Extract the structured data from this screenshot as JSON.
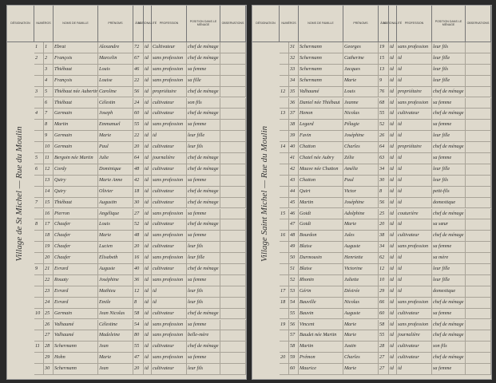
{
  "pages": [
    {
      "headers": [
        "DÉSIGNATION",
        "NUMÉROS",
        "NOMS DE FAMILLE",
        "PRÉNOMS",
        "ÂGE",
        "NATIONALITÉ",
        "PROFESSION",
        "POSITION DANS LE MÉNAGE",
        "OBSERVATIONS"
      ],
      "margin_note": "Village de St Michel — Rue du Moulin",
      "rows": [
        [
          "1",
          "1",
          "Ebrat",
          "Alexandre",
          "72",
          "id",
          "Cultivateur",
          "chef de ménage"
        ],
        [
          "2",
          "2",
          "François",
          "Marcelin",
          "67",
          "id",
          "sans profession",
          "chef de ménage"
        ],
        [
          null,
          "3",
          "Thiébaut",
          "Louis",
          "46",
          "id",
          "sans profession",
          "sa femme"
        ],
        [
          null,
          "4",
          "François",
          "Louise",
          "22",
          "id",
          "sans profession",
          "sa fille"
        ],
        [
          "3",
          "5",
          "Thiébaut née Aubertin",
          "Caroline",
          "56",
          "id",
          "propriétaire",
          "chef de ménage"
        ],
        [
          null,
          "6",
          "Thiébaut",
          "Célestin",
          "24",
          "id",
          "cultivateur",
          "son fils"
        ],
        [
          "4",
          "7",
          "Germain",
          "Joseph",
          "60",
          "id",
          "cultivateur",
          "chef de ménage"
        ],
        [
          null,
          "8",
          "Martin",
          "Emmanuel",
          "55",
          "id",
          "sans profession",
          "sa femme"
        ],
        [
          null,
          "9",
          "Germain",
          "Marie",
          "22",
          "id",
          "id",
          "leur fille"
        ],
        [
          null,
          "10",
          "Germain",
          "Paul",
          "20",
          "id",
          "cultivateur",
          "leur fils"
        ],
        [
          "5",
          "11",
          "Bergoin née Martin",
          "Julie",
          "64",
          "id",
          "journalière",
          "chef de ménage"
        ],
        [
          "6",
          "12",
          "Cordy",
          "Dominique",
          "48",
          "id",
          "cultivateur",
          "chef de ménage"
        ],
        [
          null,
          "13",
          "Quiry",
          "Marie Anne",
          "42",
          "id",
          "sans profession",
          "sa femme"
        ],
        [
          null,
          "14",
          "Quiry",
          "Olivier",
          "18",
          "id",
          "cultivateur",
          "chef de ménage"
        ],
        [
          "7",
          "15",
          "Thiébaut",
          "Augustin",
          "30",
          "id",
          "cultivateur",
          "chef de ménage"
        ],
        [
          null,
          "16",
          "Pierron",
          "Angélique",
          "27",
          "id",
          "sans profession",
          "sa femme"
        ],
        [
          "8",
          "17",
          "Chaufer",
          "Louis",
          "52",
          "id",
          "cultivateur",
          "chef de ménage"
        ],
        [
          null,
          "18",
          "Chaufer",
          "Marie",
          "48",
          "id",
          "sans profession",
          "sa femme"
        ],
        [
          null,
          "19",
          "Chaufer",
          "Lucien",
          "20",
          "id",
          "cultivateur",
          "leur fils"
        ],
        [
          null,
          "20",
          "Chaufer",
          "Elisabeth",
          "16",
          "id",
          "sans profession",
          "leur fille"
        ],
        [
          "9",
          "21",
          "Evrard",
          "Auguste",
          "40",
          "id",
          "cultivateur",
          "chef de ménage"
        ],
        [
          null,
          "22",
          "Rouaty",
          "Joséphine",
          "36",
          "id",
          "sans profession",
          "sa femme"
        ],
        [
          null,
          "23",
          "Evrard",
          "Mathieu",
          "12",
          "id",
          "id",
          "leur fils"
        ],
        [
          null,
          "24",
          "Evrard",
          "Emile",
          "8",
          "id",
          "id",
          "leur fils"
        ],
        [
          "10",
          "25",
          "Germain",
          "Jean Nicolas",
          "58",
          "id",
          "cultivateur",
          "chef de ménage"
        ],
        [
          null,
          "26",
          "Valhaumé",
          "Célestine",
          "54",
          "id",
          "sans profession",
          "sa femme"
        ],
        [
          null,
          "27",
          "Valhaumé",
          "Madeleine",
          "80",
          "id",
          "sans profession",
          "belle-mère"
        ],
        [
          "11",
          "28",
          "Schermann",
          "Jean",
          "55",
          "id",
          "cultivateur",
          "chef de ménage"
        ],
        [
          null,
          "29",
          "Hohn",
          "Marie",
          "47",
          "id",
          "sans profession",
          "sa femme"
        ],
        [
          null,
          "30",
          "Schermann",
          "Jean",
          "20",
          "id",
          "cultivateur",
          "leur fils"
        ]
      ]
    },
    {
      "headers": [
        "DÉSIGNATION",
        "NUMÉROS",
        "NOMS DE FAMILLE",
        "PRÉNOMS",
        "ÂGE",
        "NATIONALITÉ",
        "PROFESSION",
        "POSITION DANS LE MÉNAGE",
        "OBSERVATIONS"
      ],
      "margin_note": "Village Saint Michel — Rue du Moulin",
      "rows": [
        [
          null,
          "31",
          "Schermann",
          "Georges",
          "19",
          "id",
          "sans profession",
          "leur fils"
        ],
        [
          null,
          "32",
          "Schermann",
          "Catherine",
          "15",
          "id",
          "id",
          "leur fille"
        ],
        [
          null,
          "33",
          "Schermann",
          "Jacques",
          "13",
          "id",
          "id",
          "leur fils"
        ],
        [
          null,
          "34",
          "Schermann",
          "Marie",
          "9",
          "id",
          "id",
          "leur fille"
        ],
        [
          "12",
          "35",
          "Valhaumé",
          "Louis",
          "76",
          "id",
          "propriétaire",
          "chef de ménage"
        ],
        [
          null,
          "36",
          "Daniel née Thiébaut",
          "Jeanne",
          "68",
          "id",
          "sans profession",
          "sa femme"
        ],
        [
          "13",
          "37",
          "Henon",
          "Nicolas",
          "55",
          "id",
          "cultivateur",
          "chef de ménage"
        ],
        [
          null,
          "38",
          "Legard",
          "Pélagie",
          "52",
          "id",
          "id",
          "sa femme"
        ],
        [
          null,
          "39",
          "Favin",
          "Joséphine",
          "26",
          "id",
          "id",
          "leur fille"
        ],
        [
          "14",
          "40",
          "Chatton",
          "Charles",
          "64",
          "id",
          "propriétaire",
          "chef de ménage"
        ],
        [
          null,
          "41",
          "Chatel née Aubry",
          "Zélie",
          "63",
          "id",
          "id",
          "sa femme"
        ],
        [
          null,
          "42",
          "Mauve née Chatton",
          "Amélie",
          "34",
          "id",
          "id",
          "leur fille"
        ],
        [
          null,
          "43",
          "Chatton",
          "Paul",
          "30",
          "id",
          "id",
          "leur fils"
        ],
        [
          null,
          "44",
          "Quirt",
          "Victor",
          "8",
          "id",
          "id",
          "petit-fils"
        ],
        [
          null,
          "45",
          "Martin",
          "Joséphine",
          "56",
          "id",
          "id",
          "domestique"
        ],
        [
          "15",
          "46",
          "Goidt",
          "Adolphine",
          "25",
          "id",
          "couturière",
          "chef de ménage"
        ],
        [
          null,
          "47",
          "Goidt",
          "Marie",
          "20",
          "id",
          "id",
          "sa sœur"
        ],
        [
          "16",
          "48",
          "Bourdon",
          "Jules",
          "38",
          "id",
          "cultivateur",
          "chef de ménage"
        ],
        [
          null,
          "49",
          "Blaise",
          "Auguste",
          "34",
          "id",
          "sans profession",
          "sa femme"
        ],
        [
          null,
          "50",
          "Durmousin",
          "Henriette",
          "62",
          "id",
          "id",
          "sa mère"
        ],
        [
          null,
          "51",
          "Blaise",
          "Victorine",
          "12",
          "id",
          "id",
          "leur fille"
        ],
        [
          null,
          "52",
          "Rhonin",
          "Juliette",
          "10",
          "id",
          "id",
          "leur fille"
        ],
        [
          "17",
          "53",
          "Gérin",
          "Désirée",
          "29",
          "id",
          "id",
          "domestique"
        ],
        [
          "18",
          "54",
          "Bauville",
          "Nicolas",
          "66",
          "id",
          "sans profession",
          "chef de ménage"
        ],
        [
          null,
          "55",
          "Bauvin",
          "Auguste",
          "60",
          "id",
          "cultivateur",
          "sa femme"
        ],
        [
          "19",
          "56",
          "Vincent",
          "Marie",
          "58",
          "id",
          "sans profession",
          "chef de ménage"
        ],
        [
          null,
          "57",
          "Baudet née Martin",
          "Marie",
          "55",
          "id",
          "journalière",
          "chef de ménage"
        ],
        [
          null,
          "58",
          "Martin",
          "Justin",
          "28",
          "id",
          "cultivateur",
          "son fils"
        ],
        [
          "20",
          "59",
          "Prémon",
          "Charles",
          "27",
          "id",
          "cultivateur",
          "chef de ménage"
        ],
        [
          null,
          "60",
          "Maurice",
          "Marie",
          "27",
          "id",
          "id",
          "sa femme"
        ]
      ]
    }
  ]
}
